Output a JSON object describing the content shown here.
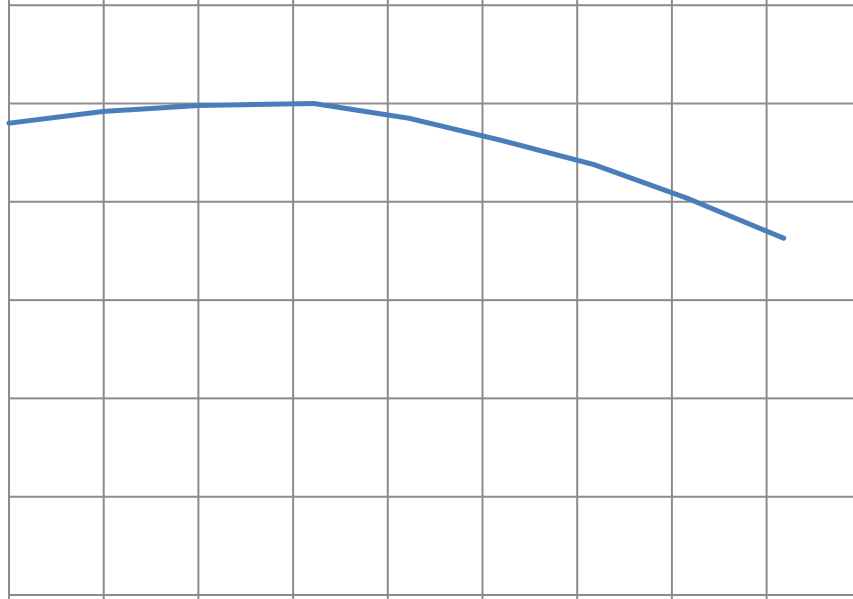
{
  "chart_data": {
    "type": "line",
    "title": "",
    "xlabel": "",
    "ylabel": "",
    "x": [
      0,
      1,
      2,
      3,
      4,
      5,
      6,
      7,
      8
    ],
    "xlim": [
      0,
      8.77
    ],
    "ylim": [
      0,
      6.22
    ],
    "grid": true,
    "legend": "none",
    "series": [
      {
        "values": [
          4.8,
          4.92,
          4.98,
          5.0,
          4.85,
          4.63,
          4.38,
          4.03,
          3.63
        ],
        "x": [
          0,
          1,
          2,
          3.22,
          4.22,
          5.18,
          6.17,
          7.18,
          8.18
        ],
        "color": "#4a7ebb"
      }
    ],
    "grid_color": "#8c8c8c",
    "background": "#ffffff"
  }
}
